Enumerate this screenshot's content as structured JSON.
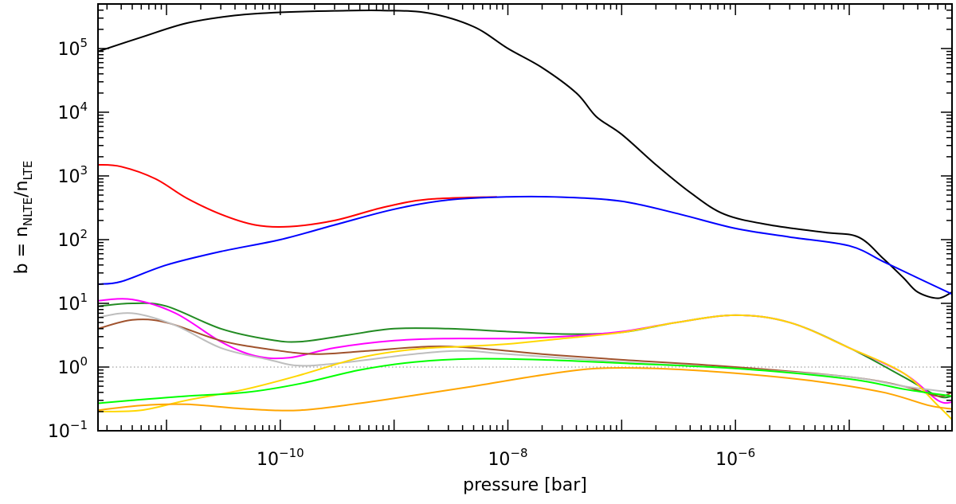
{
  "chart_data": {
    "type": "line",
    "title": "",
    "xlabel": "pressure [bar]",
    "ylabel": {
      "base": "b = n",
      "sub1": "NLTE",
      "mid": "/n",
      "sub2": "LTE"
    },
    "x_scale": "log",
    "y_scale": "log",
    "xlim": [
      2.5e-12,
      8e-05
    ],
    "ylim": [
      0.1,
      500000
    ],
    "grid": false,
    "legend": "none",
    "x_ticks": [
      {
        "value": 1e-10,
        "base": "10",
        "exp": "−10"
      },
      {
        "value": 1e-08,
        "base": "10",
        "exp": "−8"
      },
      {
        "value": 1e-06,
        "base": "10",
        "exp": "−6"
      }
    ],
    "y_ticks": [
      {
        "value": 0.1,
        "base": "10",
        "exp": "−1"
      },
      {
        "value": 1,
        "base": "10",
        "exp": "0"
      },
      {
        "value": 10,
        "base": "10",
        "exp": "1"
      },
      {
        "value": 100,
        "base": "10",
        "exp": "2"
      },
      {
        "value": 1000,
        "base": "10",
        "exp": "3"
      },
      {
        "value": 10000,
        "base": "10",
        "exp": "4"
      },
      {
        "value": 100000,
        "base": "10",
        "exp": "5"
      }
    ],
    "reference_line": {
      "y": 1,
      "style": "dotted"
    },
    "series": [
      {
        "color": "#000000",
        "points": [
          [
            2.5e-12,
            90000
          ],
          [
            6e-12,
            150000
          ],
          [
            1.5e-11,
            250000
          ],
          [
            4e-11,
            330000
          ],
          [
            1e-10,
            370000
          ],
          [
            3e-10,
            390000
          ],
          [
            8e-10,
            395000
          ],
          [
            2e-09,
            360000
          ],
          [
            5e-09,
            220000
          ],
          [
            1e-08,
            100000
          ],
          [
            2e-08,
            50000
          ],
          [
            4e-08,
            20000
          ],
          [
            6e-08,
            8500
          ],
          [
            1e-07,
            4500
          ],
          [
            2e-07,
            1500
          ],
          [
            4e-07,
            550
          ],
          [
            8e-07,
            250
          ],
          [
            2e-06,
            170
          ],
          [
            6e-06,
            130
          ],
          [
            1.2e-05,
            110
          ],
          [
            2e-05,
            50
          ],
          [
            3e-05,
            25
          ],
          [
            4e-05,
            15
          ],
          [
            6e-05,
            12
          ],
          [
            8e-05,
            15
          ]
        ]
      },
      {
        "color": "#ff0000",
        "points": [
          [
            2.5e-12,
            1500
          ],
          [
            4e-12,
            1400
          ],
          [
            8e-12,
            900
          ],
          [
            1.5e-11,
            450
          ],
          [
            3e-11,
            250
          ],
          [
            6e-11,
            170
          ],
          [
            1.2e-10,
            160
          ],
          [
            3e-10,
            200
          ],
          [
            8e-10,
            320
          ],
          [
            2e-09,
            430
          ],
          [
            8e-09,
            470
          ]
        ]
      },
      {
        "color": "#0000ff",
        "points": [
          [
            2.5e-12,
            20
          ],
          [
            4e-12,
            22
          ],
          [
            1e-11,
            40
          ],
          [
            3e-11,
            65
          ],
          [
            1e-10,
            100
          ],
          [
            3e-10,
            170
          ],
          [
            1e-09,
            300
          ],
          [
            3e-09,
            420
          ],
          [
            1e-08,
            470
          ],
          [
            3e-08,
            465
          ],
          [
            1e-07,
            400
          ],
          [
            3e-07,
            260
          ],
          [
            1e-06,
            150
          ],
          [
            3e-06,
            110
          ],
          [
            1e-05,
            80
          ],
          [
            2e-05,
            45
          ],
          [
            4e-05,
            25
          ],
          [
            8e-05,
            14
          ]
        ]
      },
      {
        "color": "#228b22",
        "points": [
          [
            2.5e-12,
            9
          ],
          [
            5e-12,
            10
          ],
          [
            1e-11,
            9
          ],
          [
            3e-11,
            4
          ],
          [
            8e-11,
            2.7
          ],
          [
            1.5e-10,
            2.5
          ],
          [
            4e-10,
            3.2
          ],
          [
            1e-09,
            4.0
          ],
          [
            3e-09,
            4.0
          ],
          [
            1e-08,
            3.6
          ],
          [
            3e-08,
            3.3
          ],
          [
            1e-07,
            3.5
          ],
          [
            3e-07,
            5.0
          ],
          [
            1e-06,
            6.5
          ],
          [
            3e-06,
            5.0
          ],
          [
            1e-05,
            2.0
          ],
          [
            3e-05,
            0.7
          ],
          [
            6e-05,
            0.35
          ],
          [
            8e-05,
            0.35
          ]
        ]
      },
      {
        "color": "#ff00ff",
        "points": [
          [
            2.5e-12,
            11
          ],
          [
            5e-12,
            11.5
          ],
          [
            1.2e-11,
            7
          ],
          [
            3e-11,
            2.5
          ],
          [
            6e-11,
            1.5
          ],
          [
            1.2e-10,
            1.4
          ],
          [
            3e-10,
            2.0
          ],
          [
            1e-09,
            2.6
          ],
          [
            3e-09,
            2.8
          ],
          [
            1e-08,
            2.8
          ],
          [
            3e-08,
            3.0
          ],
          [
            1e-07,
            3.6
          ],
          [
            3e-07,
            5.0
          ],
          [
            1e-06,
            6.5
          ],
          [
            3e-06,
            5.0
          ],
          [
            1e-05,
            2.0
          ],
          [
            3e-05,
            0.8
          ],
          [
            6e-05,
            0.3
          ],
          [
            8e-05,
            0.28
          ]
        ]
      },
      {
        "color": "#a0522d",
        "points": [
          [
            2.5e-12,
            4
          ],
          [
            5e-12,
            5.5
          ],
          [
            1e-11,
            5
          ],
          [
            3e-11,
            2.6
          ],
          [
            8e-11,
            1.9
          ],
          [
            2e-10,
            1.6
          ],
          [
            6e-10,
            1.8
          ],
          [
            2e-09,
            2.1
          ],
          [
            5e-09,
            2.0
          ],
          [
            2e-08,
            1.6
          ],
          [
            1e-07,
            1.3
          ],
          [
            1e-06,
            1.0
          ],
          [
            1e-05,
            0.7
          ],
          [
            3e-05,
            0.5
          ],
          [
            6e-05,
            0.35
          ],
          [
            8e-05,
            0.4
          ]
        ]
      },
      {
        "color": "#bebebe",
        "points": [
          [
            2.5e-12,
            6
          ],
          [
            5e-12,
            7
          ],
          [
            1.2e-11,
            4.5
          ],
          [
            3e-11,
            2.0
          ],
          [
            8e-11,
            1.3
          ],
          [
            1.5e-10,
            1.05
          ],
          [
            4e-10,
            1.2
          ],
          [
            1.5e-09,
            1.6
          ],
          [
            4e-09,
            1.8
          ],
          [
            1e-08,
            1.6
          ],
          [
            1e-07,
            1.2
          ],
          [
            1e-06,
            0.95
          ],
          [
            1e-05,
            0.7
          ],
          [
            3e-05,
            0.5
          ],
          [
            8e-05,
            0.4
          ]
        ]
      },
      {
        "color": "#ffd700",
        "points": [
          [
            2.5e-12,
            0.2
          ],
          [
            6e-12,
            0.21
          ],
          [
            1.5e-11,
            0.3
          ],
          [
            5e-11,
            0.45
          ],
          [
            1.5e-10,
            0.75
          ],
          [
            5e-10,
            1.4
          ],
          [
            1.5e-09,
            1.9
          ],
          [
            4e-09,
            2.1
          ],
          [
            1e-08,
            2.3
          ],
          [
            3e-08,
            2.8
          ],
          [
            1e-07,
            3.5
          ],
          [
            3e-07,
            5.0
          ],
          [
            1e-06,
            6.5
          ],
          [
            3e-06,
            5.0
          ],
          [
            1e-05,
            2.0
          ],
          [
            3e-05,
            0.8
          ],
          [
            6e-05,
            0.25
          ],
          [
            8e-05,
            0.15
          ]
        ]
      },
      {
        "color": "#00ff00",
        "points": [
          [
            2.5e-12,
            0.27
          ],
          [
            5e-12,
            0.3
          ],
          [
            1.5e-11,
            0.35
          ],
          [
            5e-11,
            0.4
          ],
          [
            1.5e-10,
            0.55
          ],
          [
            5e-10,
            0.9
          ],
          [
            1.5e-09,
            1.2
          ],
          [
            5e-09,
            1.35
          ],
          [
            2e-08,
            1.3
          ],
          [
            1e-07,
            1.15
          ],
          [
            1e-06,
            0.95
          ],
          [
            1e-05,
            0.65
          ],
          [
            3e-05,
            0.45
          ],
          [
            8e-05,
            0.35
          ]
        ]
      },
      {
        "color": "#ffa500",
        "points": [
          [
            2.5e-12,
            0.21
          ],
          [
            6e-12,
            0.25
          ],
          [
            1.5e-11,
            0.26
          ],
          [
            5e-11,
            0.22
          ],
          [
            1.5e-10,
            0.21
          ],
          [
            5e-10,
            0.27
          ],
          [
            1.5e-09,
            0.36
          ],
          [
            5e-09,
            0.5
          ],
          [
            2e-08,
            0.75
          ],
          [
            6e-08,
            0.95
          ],
          [
            2e-07,
            0.95
          ],
          [
            1e-06,
            0.8
          ],
          [
            5e-06,
            0.6
          ],
          [
            2e-05,
            0.4
          ],
          [
            5e-05,
            0.25
          ],
          [
            8e-05,
            0.22
          ]
        ]
      }
    ]
  }
}
